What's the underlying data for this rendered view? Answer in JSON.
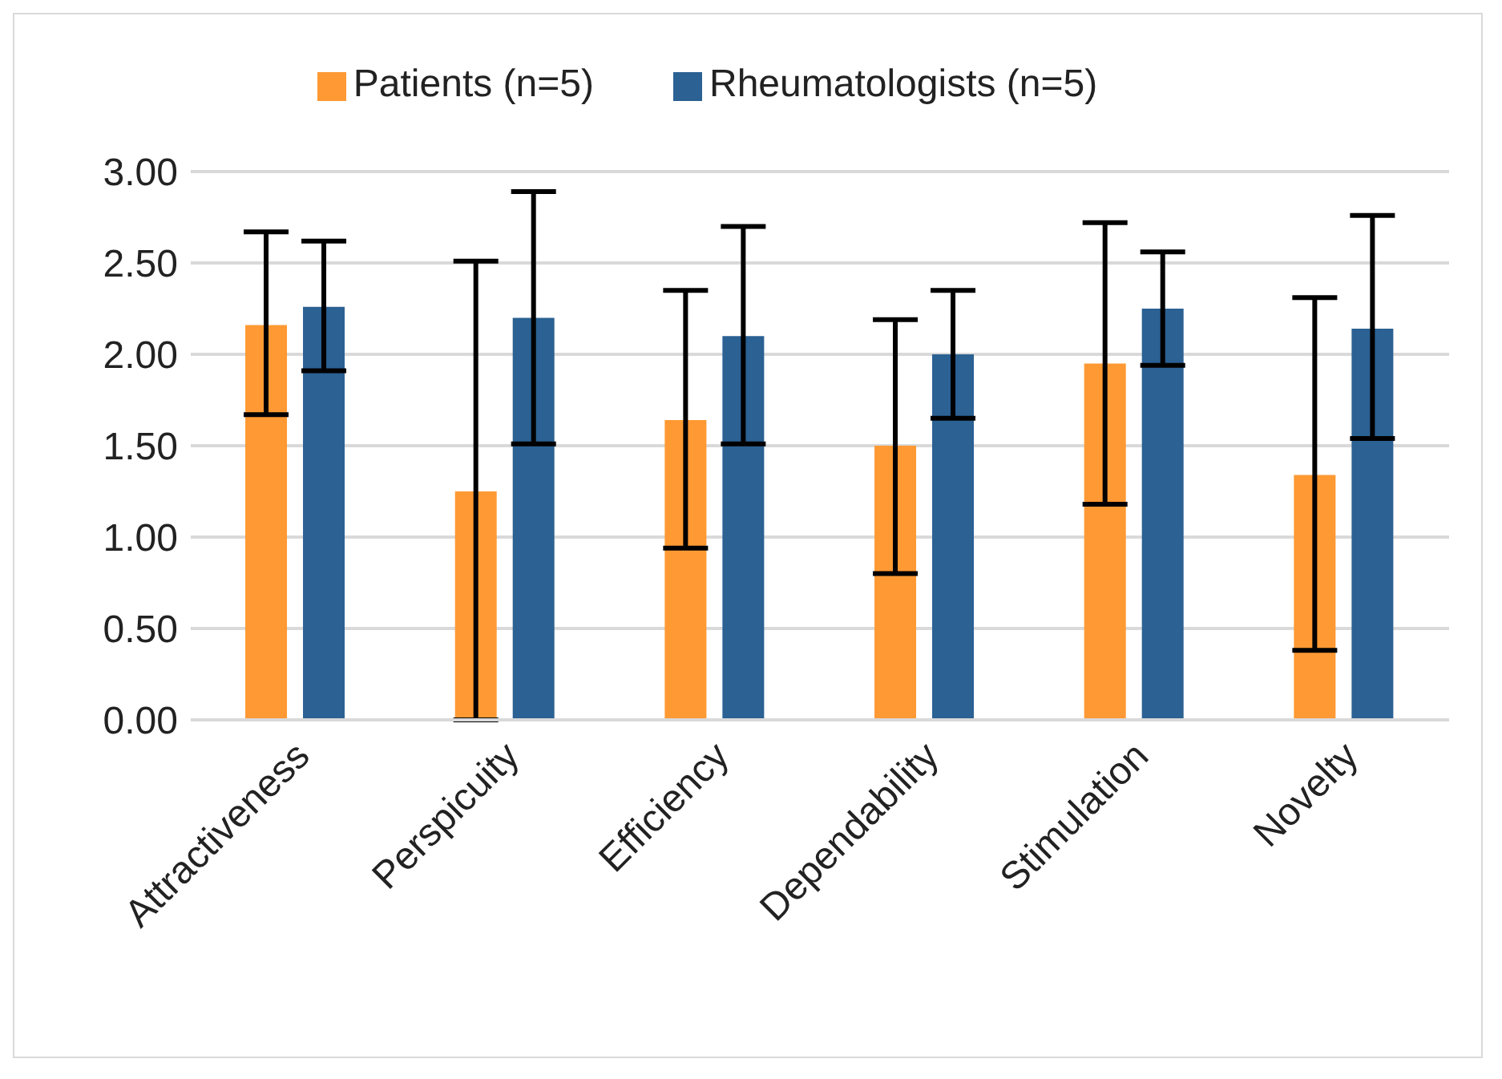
{
  "chart_data": {
    "type": "bar",
    "categories": [
      "Attractiveness",
      "Perspicuity",
      "Efficiency",
      "Dependability",
      "Stimulation",
      "Novelty"
    ],
    "series": [
      {
        "name": "Patients (n=5)",
        "color": "#ff9933",
        "values": [
          2.16,
          1.25,
          1.64,
          1.5,
          1.95,
          1.34
        ],
        "errors": [
          [
            1.67,
            2.67
          ],
          [
            0.0,
            2.51
          ],
          [
            0.94,
            2.35
          ],
          [
            0.8,
            2.19
          ],
          [
            1.18,
            2.72
          ],
          [
            0.38,
            2.31
          ]
        ]
      },
      {
        "name": "Rheumatologists (n=5)",
        "color": "#2b6193",
        "values": [
          2.26,
          2.2,
          2.1,
          2.0,
          2.25,
          2.14
        ],
        "errors": [
          [
            1.91,
            2.62
          ],
          [
            1.51,
            2.89
          ],
          [
            1.51,
            2.7
          ],
          [
            1.65,
            2.35
          ],
          [
            1.94,
            2.56
          ],
          [
            1.54,
            2.76
          ]
        ]
      }
    ],
    "ylim": [
      0,
      3
    ],
    "yticks": [
      {
        "value": 0,
        "label": "0.00"
      },
      {
        "value": 0.5,
        "label": "0.50"
      },
      {
        "value": 1,
        "label": "1.00"
      },
      {
        "value": 1.5,
        "label": "1.50"
      },
      {
        "value": 2,
        "label": "2.00"
      },
      {
        "value": 2.5,
        "label": "2.50"
      },
      {
        "value": 3,
        "label": "3.00"
      }
    ],
    "grid": "y",
    "legend": "top"
  }
}
